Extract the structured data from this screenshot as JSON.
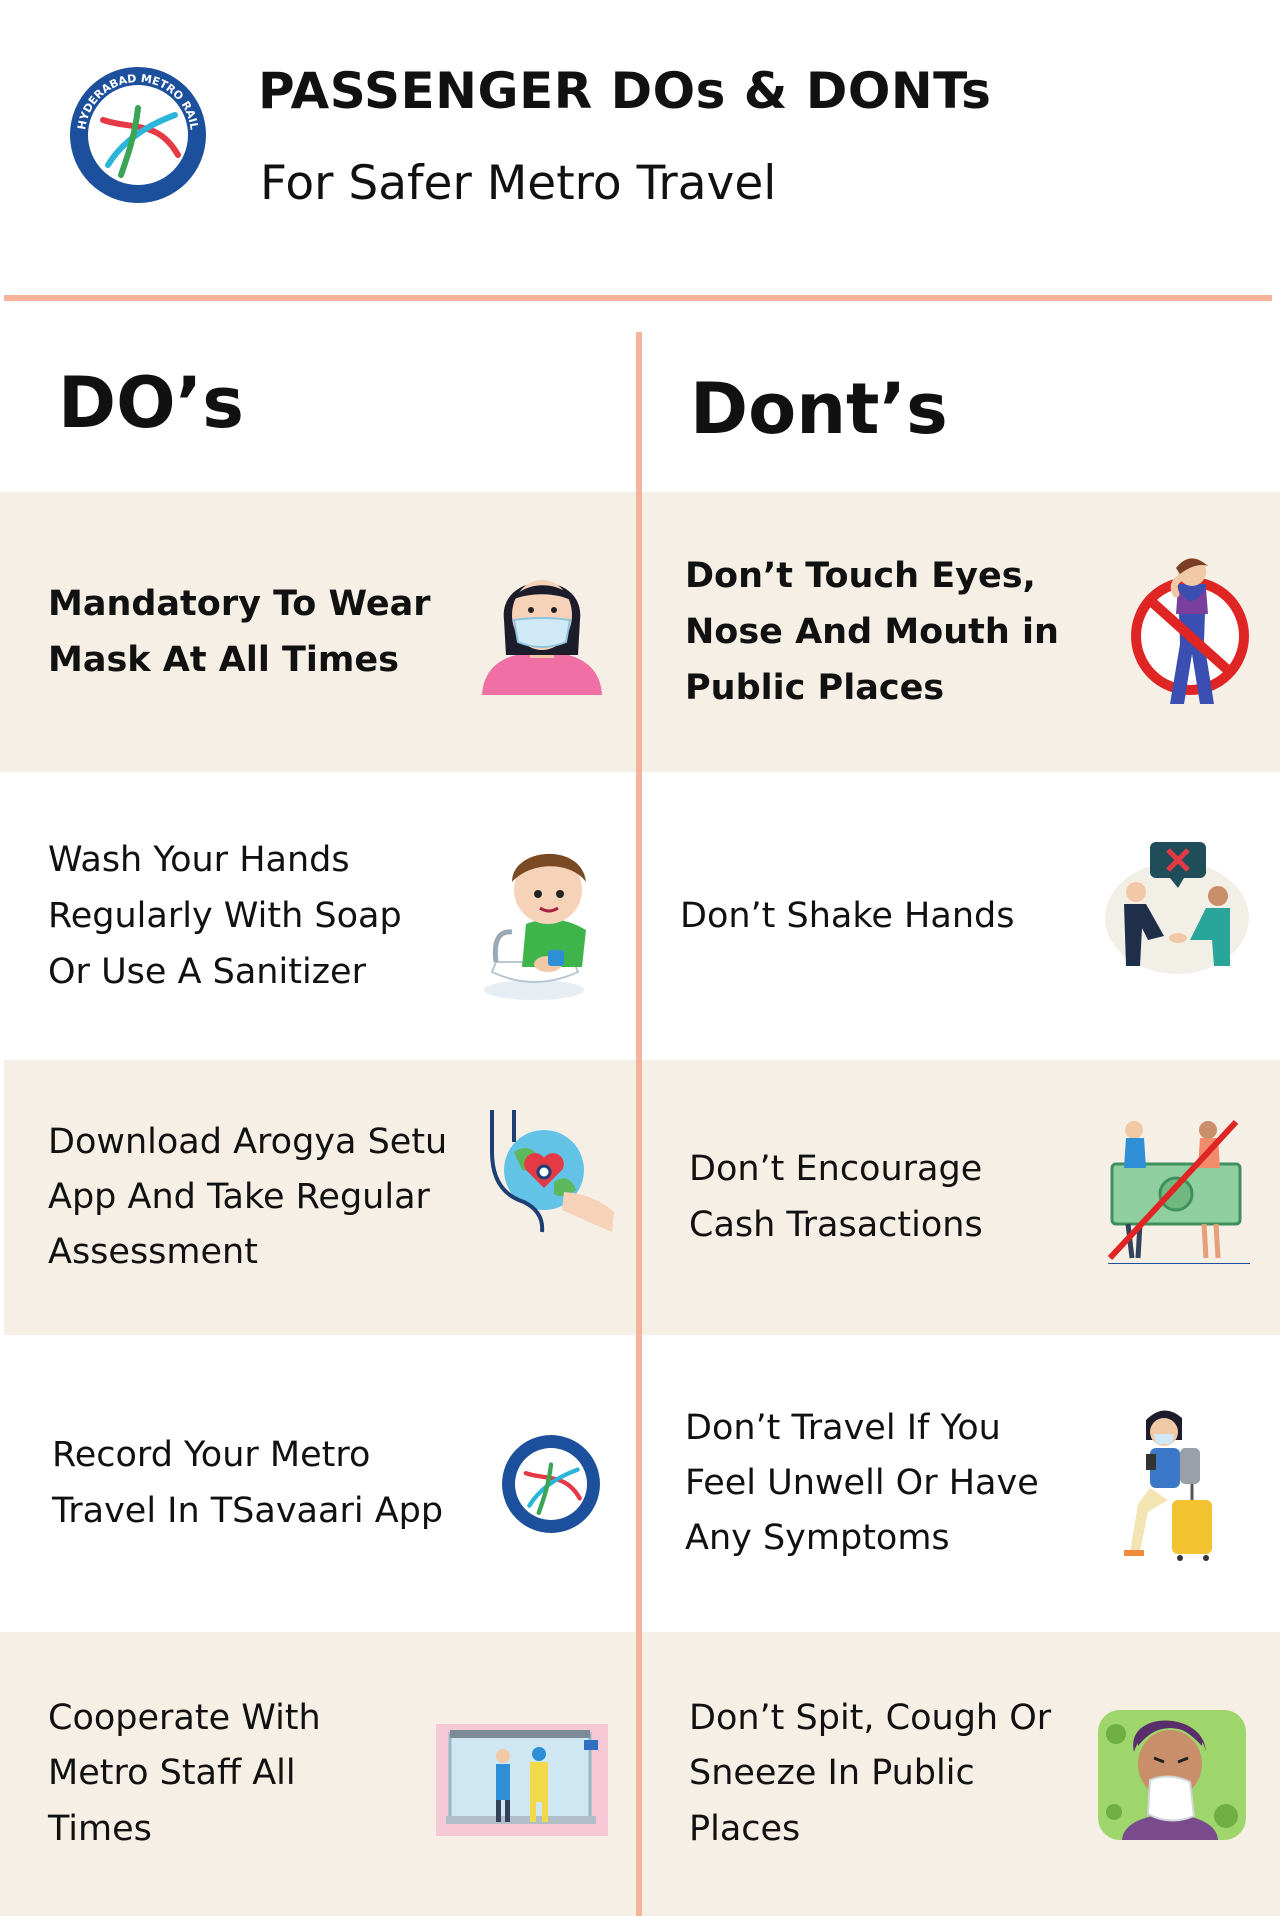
{
  "header": {
    "title": "PASSENGER DOs  &  DONTs",
    "subtitle": "For Safer Metro Travel",
    "logo_text": "HYDERABAD METRO RAIL"
  },
  "columns": {
    "dos_heading": "DO’s",
    "donts_heading": "Dont’s"
  },
  "dos": [
    {
      "lines": [
        "Mandatory To Wear",
        "Mask At All Times"
      ],
      "icon": "woman-wearing-mask-icon"
    },
    {
      "lines": [
        "Wash Your Hands",
        "Regularly With Soap",
        "Or Use A Sanitizer"
      ],
      "icon": "boy-washing-hands-icon"
    },
    {
      "lines": [
        "Download Arogya Setu",
        "App And Take Regular",
        "Assessment"
      ],
      "icon": "stethoscope-heart-globe-icon"
    },
    {
      "lines": [
        "Record Your Metro",
        "Travel In TSavaari App"
      ],
      "icon": "hyderabad-metro-logo-icon"
    },
    {
      "lines": [
        "Cooperate With",
        "Metro Staff All",
        "Times"
      ],
      "icon": "metro-staff-screening-icon"
    }
  ],
  "donts": [
    {
      "lines": [
        "Don’t Touch Eyes,",
        "Nose And Mouth in",
        "Public Places"
      ],
      "icon": "no-face-touching-icon"
    },
    {
      "lines": [
        "Don’t Shake Hands"
      ],
      "icon": "no-handshake-icon"
    },
    {
      "lines": [
        "Don’t Encourage",
        "Cash Trasactions"
      ],
      "icon": "no-cash-icon"
    },
    {
      "lines": [
        "Don’t Travel If You",
        "Feel Unwell Or Have",
        "Any Symptoms"
      ],
      "icon": "sick-traveler-icon"
    },
    {
      "lines": [
        "Don’t Spit, Cough Or",
        "Sneeze In Public",
        "Places"
      ],
      "icon": "person-sneezing-icon"
    }
  ],
  "colors": {
    "accent": "#f4b39a",
    "row_beige": "#f6efe5",
    "logo_blue": "#1c4f9c",
    "logo_red": "#e63946",
    "logo_green": "#3aa655",
    "logo_cyan": "#2bb5d8"
  }
}
